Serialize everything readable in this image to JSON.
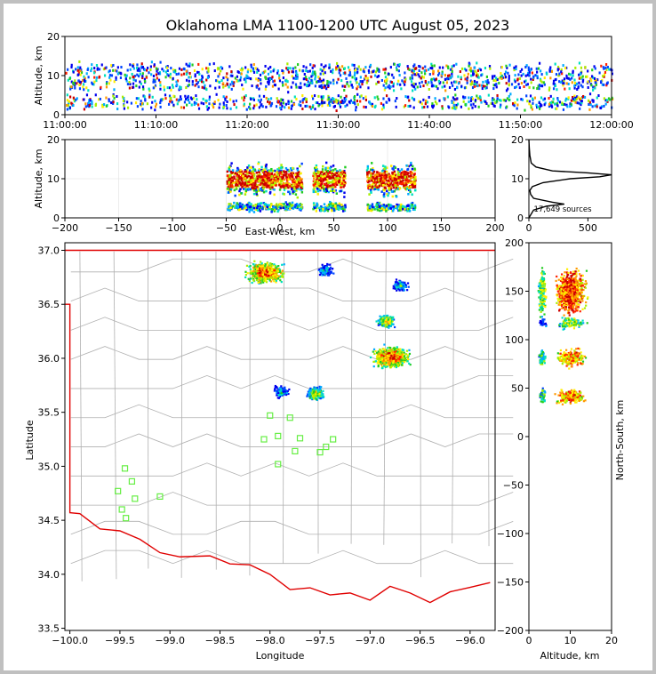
{
  "title": "Oklahoma LMA 1100-1200 UTC August 05, 2023",
  "chart_data": [
    {
      "type": "heatmap",
      "panel": "time-altitude",
      "ylabel": "Altitude, km",
      "ylim": [
        0,
        20
      ],
      "yticks": [
        "0",
        "10",
        "20"
      ],
      "xlim": [
        "11:00:00",
        "12:00:00"
      ],
      "xticks": [
        "11:00:00",
        "11:10:00",
        "11:20:00",
        "11:30:00",
        "11:40:00",
        "11:50:00",
        "12:00:00"
      ],
      "source_altitude_bands_km": [
        [
          2,
          5
        ],
        [
          7,
          13
        ]
      ]
    },
    {
      "type": "heatmap",
      "panel": "east-west-altitude",
      "xlabel": "East-West, km",
      "ylabel": "Altitude, km",
      "xlim": [
        -200,
        200
      ],
      "ylim": [
        0,
        20
      ],
      "xticks": [
        "−200",
        "−150",
        "−100",
        "−50",
        "0",
        "50",
        "100",
        "150",
        "200"
      ],
      "yticks": [
        "0",
        "10",
        "20"
      ],
      "clusters_x_km": [
        [
          -50,
          20
        ],
        [
          30,
          60
        ],
        [
          80,
          125
        ]
      ]
    },
    {
      "type": "line",
      "panel": "altitude-histogram",
      "xlim": [
        0,
        700
      ],
      "ylim": [
        0,
        20
      ],
      "xticks": [
        "0",
        "500"
      ],
      "yticks": [
        "0",
        "10",
        "20"
      ],
      "annotation": "17,649 sources",
      "x": [
        0,
        40,
        150,
        300,
        200,
        40,
        15,
        8,
        30,
        120,
        350,
        600,
        700,
        500,
        200,
        60,
        20,
        8,
        3,
        0
      ],
      "y": [
        0,
        2,
        3,
        3.5,
        4,
        5,
        6,
        7,
        8,
        9,
        10,
        10.5,
        11,
        11.5,
        12,
        13,
        14,
        16,
        18,
        20
      ]
    },
    {
      "type": "heatmap",
      "panel": "plan-view",
      "xlabel": "Longitude",
      "ylabel": "Latitude",
      "xlim": [
        -100.05,
        -95.75
      ],
      "ylim": [
        33.48,
        37.07
      ],
      "xticks": [
        "−100.0",
        "−99.5",
        "−99.0",
        "−98.5",
        "−98.0",
        "−97.5",
        "−97.0",
        "−96.5",
        "−96.0"
      ],
      "yticks": [
        "33.5",
        "34.0",
        "34.5",
        "35.0",
        "35.5",
        "36.0",
        "36.5",
        "37.0"
      ],
      "clusters": [
        {
          "lon": -98.05,
          "lat": 36.8,
          "intensity": "high"
        },
        {
          "lon": -97.45,
          "lat": 36.82,
          "intensity": "low"
        },
        {
          "lon": -96.85,
          "lat": 36.35,
          "intensity": "mid"
        },
        {
          "lon": -96.8,
          "lat": 36.02,
          "intensity": "high"
        },
        {
          "lon": -97.55,
          "lat": 35.68,
          "intensity": "mid"
        },
        {
          "lon": -97.9,
          "lat": 35.7,
          "intensity": "low"
        },
        {
          "lon": -96.7,
          "lat": 36.68,
          "intensity": "low"
        }
      ],
      "stations": [
        {
          "lon": -98.0,
          "lat": 35.47
        },
        {
          "lon": -97.8,
          "lat": 35.45
        },
        {
          "lon": -98.06,
          "lat": 35.25
        },
        {
          "lon": -97.92,
          "lat": 35.28
        },
        {
          "lon": -97.7,
          "lat": 35.26
        },
        {
          "lon": -97.37,
          "lat": 35.25
        },
        {
          "lon": -97.44,
          "lat": 35.18
        },
        {
          "lon": -97.5,
          "lat": 35.13
        },
        {
          "lon": -97.75,
          "lat": 35.14
        },
        {
          "lon": -97.92,
          "lat": 35.02
        },
        {
          "lon": -99.45,
          "lat": 34.98
        },
        {
          "lon": -99.38,
          "lat": 34.86
        },
        {
          "lon": -99.52,
          "lat": 34.77
        },
        {
          "lon": -99.35,
          "lat": 34.7
        },
        {
          "lon": -99.1,
          "lat": 34.72
        },
        {
          "lon": -99.48,
          "lat": 34.6
        },
        {
          "lon": -99.44,
          "lat": 34.52
        }
      ]
    },
    {
      "type": "heatmap",
      "panel": "altitude-north-south",
      "xlabel": "Altitude, km",
      "ylabel": "North-South, km",
      "xlim": [
        0,
        20
      ],
      "ylim": [
        -200,
        200
      ],
      "xticks": [
        "0",
        "10",
        "20"
      ],
      "yticks": [
        "−200",
        "−150",
        "−100",
        "−50",
        "0",
        "50",
        "100",
        "150",
        "200"
      ]
    }
  ],
  "colors": {
    "border": "#e00000",
    "counties": "#b0b0b0",
    "station": "#66ee44",
    "histogram": "#000000"
  }
}
